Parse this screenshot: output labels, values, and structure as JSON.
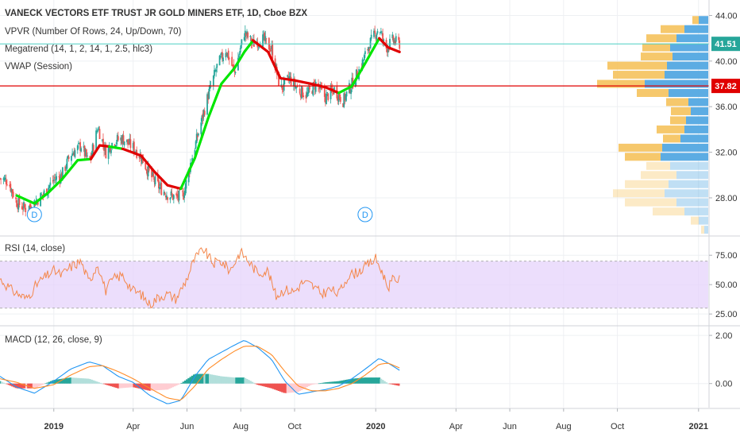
{
  "header": {
    "title": "VANECK VECTORS ETF TRUST JR GOLD MINERS ETF, 1D, Cboe BZX",
    "studies": [
      "VPVR (Number Of Rows, 24, Up/Down, 70)",
      "Megatrend (14, 1, 2, 14, 1, 2.5, hlc3)",
      "VWAP (Session)"
    ]
  },
  "colors": {
    "up": "#26a69a",
    "down": "#ef5350",
    "trend_up": "#00e600",
    "trend_down": "#e00000",
    "vwap_line": "#e00000",
    "last_line": "#4dd0c4",
    "rsi": "#f4874b",
    "rsi_band": "#e6d3fb",
    "macd": "#2196f3",
    "signal": "#ff8c28",
    "vpvr_up": "#4aa3e0",
    "vpvr_down": "#f5c25c",
    "grid": "#eef0f3",
    "axis_text": "#333333"
  },
  "price_labels": {
    "last": "41.51",
    "vwap": "37.82"
  },
  "dividend_markers": [
    {
      "label": "D",
      "date": "2018-12-10"
    },
    {
      "label": "D",
      "date": "2019-12-20"
    }
  ],
  "x_axis": {
    "labels": [
      {
        "text": "2019",
        "date": "2019-01-01",
        "bold": true
      },
      {
        "text": "Apr",
        "date": "2019-04-01"
      },
      {
        "text": "Jun",
        "date": "2019-06-01"
      },
      {
        "text": "Aug",
        "date": "2019-08-01"
      },
      {
        "text": "Oct",
        "date": "2019-10-01"
      },
      {
        "text": "2020",
        "date": "2020-01-01",
        "bold": true
      },
      {
        "text": "Apr",
        "date": "2020-04-01"
      },
      {
        "text": "Jun",
        "date": "2020-06-01"
      },
      {
        "text": "Aug",
        "date": "2020-08-01"
      },
      {
        "text": "Oct",
        "date": "2020-10-01"
      },
      {
        "text": "2021",
        "date": "2021-01-01",
        "bold": true
      }
    ]
  },
  "chart_data": [
    {
      "type": "line",
      "subtype": "candlestick",
      "title": "VANECK VECTORS ETF TRUST JR GOLD MINERS ETF, 1D, Cboe BZX",
      "x_range": [
        "2018-11-01",
        "2021-01-15"
      ],
      "ylim": [
        25,
        44.8
      ],
      "yticks": [
        "28.00",
        "32.00",
        "36.00",
        "40.00",
        "44.00"
      ],
      "close_path": [
        [
          "2018-11-01",
          29.7
        ],
        [
          "2018-11-10",
          29.5
        ],
        [
          "2018-11-20",
          27.6
        ],
        [
          "2018-12-01",
          27.0
        ],
        [
          "2018-12-10",
          27.6
        ],
        [
          "2018-12-20",
          28.3
        ],
        [
          "2019-01-01",
          29.6
        ],
        [
          "2019-01-10",
          30.0
        ],
        [
          "2019-01-20",
          31.8
        ],
        [
          "2019-02-01",
          32.6
        ],
        [
          "2019-02-10",
          31.0
        ],
        [
          "2019-02-20",
          34.2
        ],
        [
          "2019-03-01",
          32.0
        ],
        [
          "2019-03-10",
          33.0
        ],
        [
          "2019-03-20",
          33.2
        ],
        [
          "2019-04-01",
          32.4
        ],
        [
          "2019-04-10",
          31.6
        ],
        [
          "2019-04-20",
          30.0
        ],
        [
          "2019-05-01",
          28.9
        ],
        [
          "2019-05-10",
          28.3
        ],
        [
          "2019-05-20",
          28.0
        ],
        [
          "2019-05-28",
          28.3
        ],
        [
          "2019-06-05",
          31.0
        ],
        [
          "2019-06-15",
          34.0
        ],
        [
          "2019-06-25",
          37.0
        ],
        [
          "2019-07-05",
          39.5
        ],
        [
          "2019-07-15",
          41.0
        ],
        [
          "2019-07-25",
          39.0
        ],
        [
          "2019-08-05",
          42.5
        ],
        [
          "2019-08-15",
          41.5
        ],
        [
          "2019-08-25",
          42.0
        ],
        [
          "2019-09-05",
          41.0
        ],
        [
          "2019-09-15",
          37.5
        ],
        [
          "2019-09-25",
          38.5
        ],
        [
          "2019-10-05",
          37.5
        ],
        [
          "2019-10-15",
          37.0
        ],
        [
          "2019-10-25",
          38.0
        ],
        [
          "2019-11-05",
          36.8
        ],
        [
          "2019-11-15",
          37.5
        ],
        [
          "2019-11-25",
          36.5
        ],
        [
          "2019-12-05",
          38.0
        ],
        [
          "2019-12-15",
          39.5
        ],
        [
          "2019-12-25",
          41.5
        ],
        [
          "2020-01-05",
          43.0
        ],
        [
          "2020-01-12",
          41.0
        ],
        [
          "2020-01-20",
          41.8
        ],
        [
          "2020-01-28",
          41.5
        ]
      ],
      "megatrend": [
        {
          "color": "up",
          "points": [
            [
              "2018-11-20",
              28.2
            ],
            [
              "2018-12-10",
              27.5
            ],
            [
              "2018-12-25",
              28.4
            ],
            [
              "2019-01-10",
              29.6
            ],
            [
              "2019-01-28",
              31.3
            ],
            [
              "2019-02-12",
              31.4
            ]
          ]
        },
        {
          "color": "down",
          "points": [
            [
              "2019-02-12",
              31.4
            ],
            [
              "2019-02-22",
              32.6
            ],
            [
              "2019-03-05",
              32.5
            ]
          ]
        },
        {
          "color": "up",
          "points": [
            [
              "2019-03-05",
              32.5
            ],
            [
              "2019-03-20",
              32.3
            ]
          ]
        },
        {
          "color": "down",
          "points": [
            [
              "2019-03-20",
              32.3
            ],
            [
              "2019-04-10",
              31.7
            ],
            [
              "2019-04-25",
              30.3
            ],
            [
              "2019-05-10",
              29.1
            ],
            [
              "2019-05-25",
              28.8
            ]
          ]
        },
        {
          "color": "up",
          "points": [
            [
              "2019-05-25",
              28.8
            ],
            [
              "2019-06-10",
              31.5
            ],
            [
              "2019-06-25",
              35.0
            ],
            [
              "2019-07-10",
              38.0
            ],
            [
              "2019-07-25",
              39.4
            ],
            [
              "2019-08-05",
              40.8
            ],
            [
              "2019-08-15",
              41.8
            ]
          ]
        },
        {
          "color": "down",
          "points": [
            [
              "2019-08-15",
              41.8
            ],
            [
              "2019-09-01",
              40.8
            ],
            [
              "2019-09-15",
              38.5
            ],
            [
              "2019-10-01",
              38.3
            ],
            [
              "2019-10-20",
              38.0
            ],
            [
              "2019-11-05",
              37.7
            ],
            [
              "2019-11-20",
              37.2
            ]
          ]
        },
        {
          "color": "up",
          "points": [
            [
              "2019-11-20",
              37.2
            ],
            [
              "2019-12-05",
              37.8
            ],
            [
              "2019-12-20",
              39.8
            ],
            [
              "2020-01-05",
              42.0
            ]
          ]
        },
        {
          "color": "down",
          "points": [
            [
              "2020-01-05",
              42.0
            ],
            [
              "2020-01-15",
              41.2
            ],
            [
              "2020-01-28",
              40.8
            ]
          ]
        }
      ],
      "vwap": 37.82,
      "last": 41.51,
      "vpvr_rows": [
        {
          "price": 43.6,
          "up": 12,
          "down": 8,
          "faded": false
        },
        {
          "price": 42.8,
          "up": 30,
          "down": 30,
          "faded": false
        },
        {
          "price": 42.0,
          "up": 40,
          "down": 38,
          "faded": false
        },
        {
          "price": 41.2,
          "up": 48,
          "down": 35,
          "faded": false
        },
        {
          "price": 40.4,
          "up": 45,
          "down": 40,
          "faded": false
        },
        {
          "price": 39.6,
          "up": 52,
          "down": 75,
          "faded": false
        },
        {
          "price": 38.8,
          "up": 55,
          "down": 65,
          "faded": false
        },
        {
          "price": 38.0,
          "up": 80,
          "down": 60,
          "faded": false
        },
        {
          "price": 37.2,
          "up": 50,
          "down": 40,
          "faded": false
        },
        {
          "price": 36.4,
          "up": 25,
          "down": 28,
          "faded": false
        },
        {
          "price": 35.6,
          "up": 22,
          "down": 25,
          "faded": false
        },
        {
          "price": 34.8,
          "up": 28,
          "down": 20,
          "faded": false
        },
        {
          "price": 34.0,
          "up": 30,
          "down": 35,
          "faded": false
        },
        {
          "price": 33.2,
          "up": 35,
          "down": 22,
          "faded": false
        },
        {
          "price": 32.4,
          "up": 58,
          "down": 55,
          "faded": false
        },
        {
          "price": 31.6,
          "up": 60,
          "down": 45,
          "faded": false
        },
        {
          "price": 30.8,
          "up": 48,
          "down": 30,
          "faded": true
        },
        {
          "price": 30.0,
          "up": 40,
          "down": 45,
          "faded": true
        },
        {
          "price": 29.2,
          "up": 50,
          "down": 55,
          "faded": true
        },
        {
          "price": 28.4,
          "up": 55,
          "down": 65,
          "faded": true
        },
        {
          "price": 27.6,
          "up": 40,
          "down": 65,
          "faded": true
        },
        {
          "price": 26.8,
          "up": 30,
          "down": 40,
          "faded": true
        },
        {
          "price": 26.0,
          "up": 12,
          "down": 10,
          "faded": true
        },
        {
          "price": 25.2,
          "up": 5,
          "down": 4,
          "faded": true
        }
      ]
    },
    {
      "type": "line",
      "title": "RSI (14, close)",
      "ylim": [
        17,
        88
      ],
      "yticks": [
        "25.00",
        "50.00",
        "75.00"
      ],
      "band": [
        30,
        70
      ],
      "series": [
        {
          "values": [
            [
              "2018-11-01",
              55
            ],
            [
              "2018-11-15",
              45
            ],
            [
              "2018-12-01",
              38
            ],
            [
              "2018-12-15",
              52
            ],
            [
              "2019-01-01",
              62
            ],
            [
              "2019-01-10",
              58
            ],
            [
              "2019-01-20",
              65
            ],
            [
              "2019-02-01",
              70
            ],
            [
              "2019-02-10",
              52
            ],
            [
              "2019-02-20",
              68
            ],
            [
              "2019-03-01",
              45
            ],
            [
              "2019-03-10",
              55
            ],
            [
              "2019-03-20",
              58
            ],
            [
              "2019-04-01",
              45
            ],
            [
              "2019-04-10",
              42
            ],
            [
              "2019-04-20",
              33
            ],
            [
              "2019-05-01",
              40
            ],
            [
              "2019-05-10",
              42
            ],
            [
              "2019-05-20",
              38
            ],
            [
              "2019-06-01",
              55
            ],
            [
              "2019-06-10",
              72
            ],
            [
              "2019-06-20",
              80
            ],
            [
              "2019-07-01",
              68
            ],
            [
              "2019-07-10",
              70
            ],
            [
              "2019-07-20",
              62
            ],
            [
              "2019-08-01",
              78
            ],
            [
              "2019-08-10",
              70
            ],
            [
              "2019-08-20",
              60
            ],
            [
              "2019-09-01",
              62
            ],
            [
              "2019-09-10",
              40
            ],
            [
              "2019-09-20",
              46
            ],
            [
              "2019-10-01",
              44
            ],
            [
              "2019-10-10",
              52
            ],
            [
              "2019-10-20",
              50
            ],
            [
              "2019-11-01",
              42
            ],
            [
              "2019-11-10",
              46
            ],
            [
              "2019-11-20",
              42
            ],
            [
              "2019-12-01",
              58
            ],
            [
              "2019-12-10",
              60
            ],
            [
              "2019-12-20",
              65
            ],
            [
              "2020-01-01",
              72
            ],
            [
              "2020-01-08",
              62
            ],
            [
              "2020-01-15",
              48
            ],
            [
              "2020-01-22",
              55
            ],
            [
              "2020-01-28",
              54
            ]
          ]
        }
      ]
    },
    {
      "type": "bar",
      "subtype": "histogram_with_lines",
      "title": "MACD (12, 26, close, 9)",
      "ylim": [
        -1.0,
        2.3
      ],
      "yticks": [
        "0.00",
        "2.00"
      ],
      "series": [
        {
          "name": "MACD",
          "values": [
            [
              "2018-11-01",
              0.3
            ],
            [
              "2018-11-20",
              -0.15
            ],
            [
              "2018-12-10",
              -0.4
            ],
            [
              "2019-01-01",
              0.1
            ],
            [
              "2019-01-20",
              0.6
            ],
            [
              "2019-02-10",
              0.9
            ],
            [
              "2019-02-25",
              0.75
            ],
            [
              "2019-03-15",
              0.3
            ],
            [
              "2019-04-01",
              0.05
            ],
            [
              "2019-04-20",
              -0.5
            ],
            [
              "2019-05-10",
              -0.85
            ],
            [
              "2019-05-25",
              -0.7
            ],
            [
              "2019-06-10",
              0.3
            ],
            [
              "2019-06-25",
              1.0
            ],
            [
              "2019-07-10",
              1.3
            ],
            [
              "2019-07-25",
              1.6
            ],
            [
              "2019-08-05",
              1.8
            ],
            [
              "2019-08-20",
              1.5
            ],
            [
              "2019-09-05",
              1.0
            ],
            [
              "2019-09-20",
              0.1
            ],
            [
              "2019-10-05",
              -0.45
            ],
            [
              "2019-10-20",
              -0.35
            ],
            [
              "2019-11-05",
              -0.25
            ],
            [
              "2019-11-20",
              -0.1
            ],
            [
              "2019-12-05",
              0.2
            ],
            [
              "2019-12-20",
              0.6
            ],
            [
              "2020-01-05",
              1.05
            ],
            [
              "2020-01-15",
              0.85
            ],
            [
              "2020-01-28",
              0.55
            ]
          ]
        },
        {
          "name": "Signal",
          "values": [
            [
              "2018-11-01",
              0.2
            ],
            [
              "2018-11-20",
              0.05
            ],
            [
              "2018-12-10",
              -0.2
            ],
            [
              "2019-01-01",
              -0.05
            ],
            [
              "2019-01-20",
              0.35
            ],
            [
              "2019-02-10",
              0.7
            ],
            [
              "2019-02-25",
              0.75
            ],
            [
              "2019-03-15",
              0.5
            ],
            [
              "2019-04-01",
              0.2
            ],
            [
              "2019-04-20",
              -0.2
            ],
            [
              "2019-05-10",
              -0.6
            ],
            [
              "2019-05-25",
              -0.7
            ],
            [
              "2019-06-10",
              -0.1
            ],
            [
              "2019-06-25",
              0.6
            ],
            [
              "2019-07-10",
              1.0
            ],
            [
              "2019-07-25",
              1.35
            ],
            [
              "2019-08-05",
              1.55
            ],
            [
              "2019-08-20",
              1.55
            ],
            [
              "2019-09-05",
              1.2
            ],
            [
              "2019-09-20",
              0.5
            ],
            [
              "2019-10-05",
              -0.1
            ],
            [
              "2019-10-20",
              -0.3
            ],
            [
              "2019-11-05",
              -0.3
            ],
            [
              "2019-11-20",
              -0.2
            ],
            [
              "2019-12-05",
              0.0
            ],
            [
              "2019-12-20",
              0.35
            ],
            [
              "2020-01-05",
              0.8
            ],
            [
              "2020-01-15",
              0.85
            ],
            [
              "2020-01-28",
              0.65
            ]
          ]
        }
      ]
    }
  ]
}
